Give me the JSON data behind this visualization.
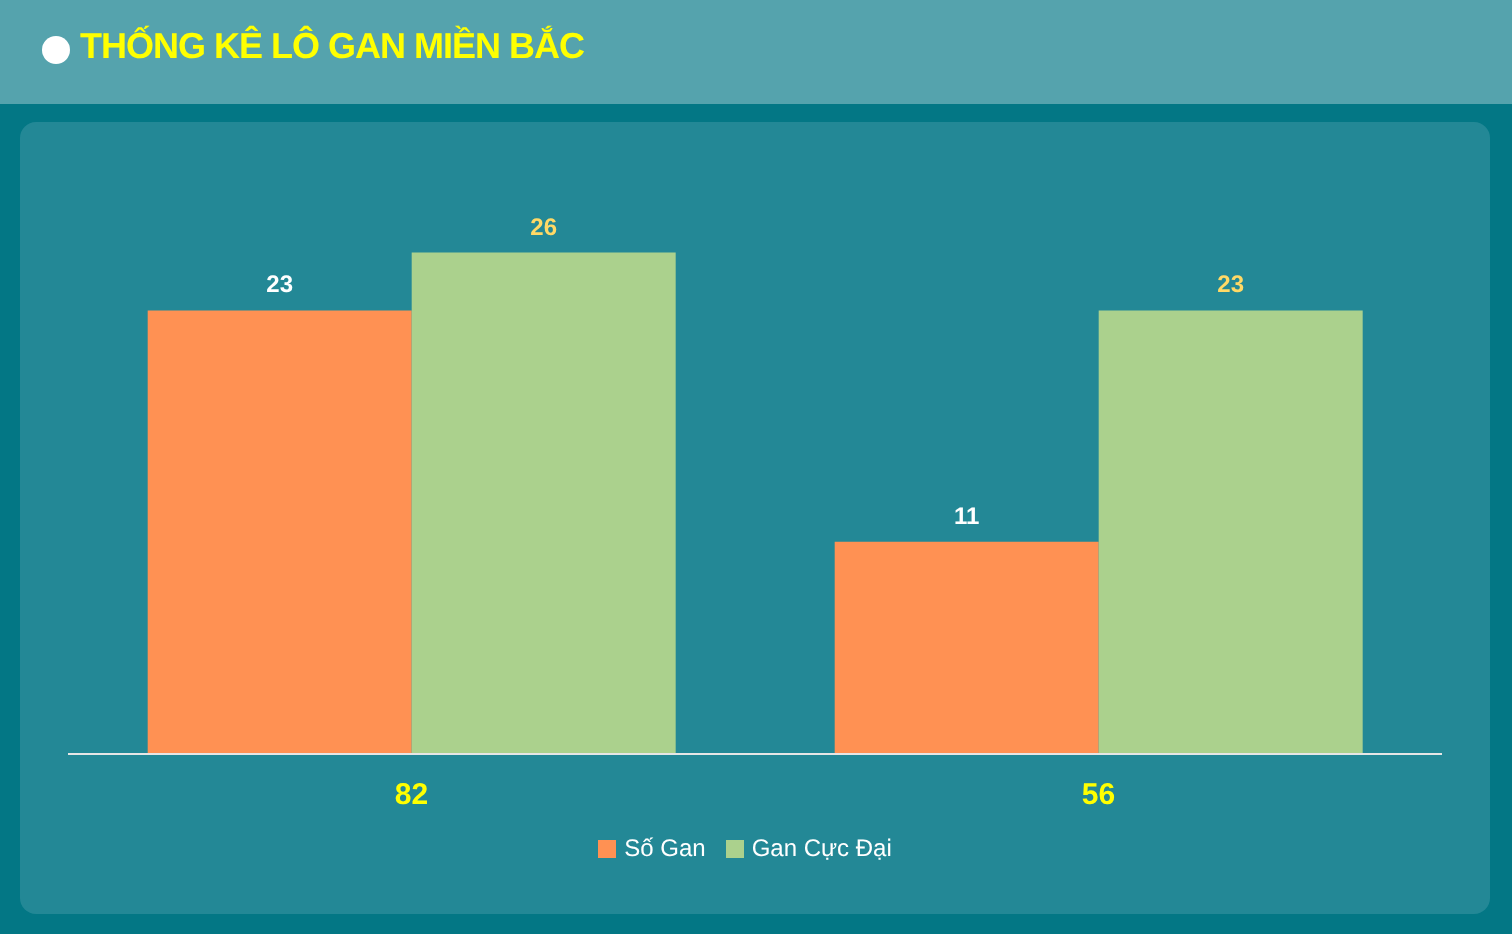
{
  "chart_data": {
    "type": "bar",
    "title": "THỐNG KÊ LÔ GAN MIỀN BẮC",
    "categories": [
      "82",
      "56"
    ],
    "series": [
      {
        "name": "Số Gan",
        "color": "#ff9153",
        "values": [
          23,
          11
        ]
      },
      {
        "name": "Gan Cực Đại",
        "color": "#abd18d",
        "values": [
          26,
          23
        ]
      }
    ],
    "data_labels": true,
    "legend": "bottom"
  }
}
